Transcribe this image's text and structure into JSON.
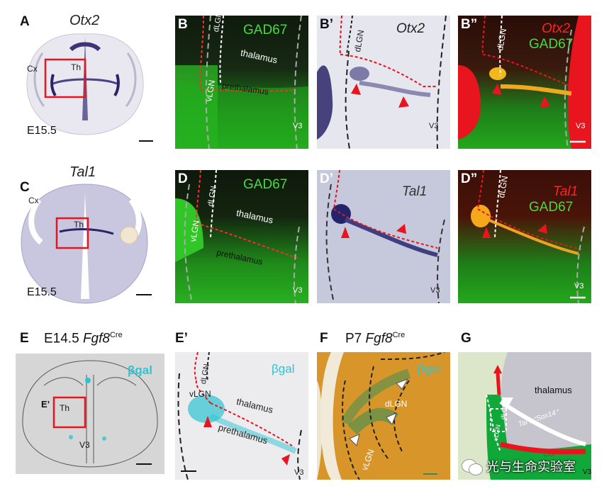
{
  "panels": {
    "A": {
      "letter": "A",
      "gene": "Otx2",
      "cx": "Cx",
      "th": "Th",
      "stage": "E15.5"
    },
    "B": {
      "letter": "B",
      "marker": "GAD67",
      "dlgn": "dLGN",
      "vlgn": "vLGN",
      "thalamus": "thalamus",
      "prethalamus": "prethalamus",
      "v3": "V3"
    },
    "B1": {
      "letter": "B’",
      "dlgn": "dLGN",
      "gene": "Otx2",
      "v3": "V3"
    },
    "B2": {
      "letter": "B”",
      "dlgn": "dLGN",
      "gene": "Otx2",
      "marker": "GAD67",
      "v3": "V3"
    },
    "C": {
      "letter": "C",
      "gene": "Tal1",
      "cx": "Cx",
      "th": "Th",
      "stage": "E15.5"
    },
    "D": {
      "letter": "D",
      "marker": "GAD67",
      "dlgn": "dLGN",
      "vlgn": "vLGN",
      "thalamus": "thalamus",
      "prethalamus": "prethalamus",
      "v3": "V3"
    },
    "D1": {
      "letter": "D’",
      "gene": "Tal1",
      "v3": "V3"
    },
    "D2": {
      "letter": "D”",
      "dlgn": "dLGN",
      "gene": "Tal1",
      "marker": "GAD67",
      "v3": "V3"
    },
    "E": {
      "letter": "E",
      "stage": "E14.5",
      "line": "Fgf8",
      "sup": "Cre",
      "bgal": "βgal",
      "e1": "E’",
      "th": "Th",
      "v3": "V3"
    },
    "E1": {
      "letter": "E’",
      "bgal": "βgal",
      "dlgn": "dLGN",
      "vlgn": "vLGN",
      "thalamus": "thalamus",
      "prethalamus": "prethalamus",
      "v3": "V3"
    },
    "F": {
      "letter": "F",
      "stage": "P7",
      "line": "Fgf8",
      "sup": "Cre",
      "bgal": "βgal",
      "dlgn": "dLGN",
      "vlgn": "vLGN"
    },
    "G": {
      "letter": "G",
      "thalamus": "thalamus",
      "dlgn": "dLGN",
      "vlgn": "vLGN",
      "arrow_label": "Tal 1⁺Sox14⁺",
      "otx": "Otx",
      "v3": "V3"
    }
  },
  "watermark": {
    "text": "光与生命实验室"
  },
  "colors": {
    "green": "#22c01e",
    "red": "#e8141e",
    "cyan": "#2ec4d2",
    "purple": "#2a2466",
    "orange": "#d8962a"
  }
}
